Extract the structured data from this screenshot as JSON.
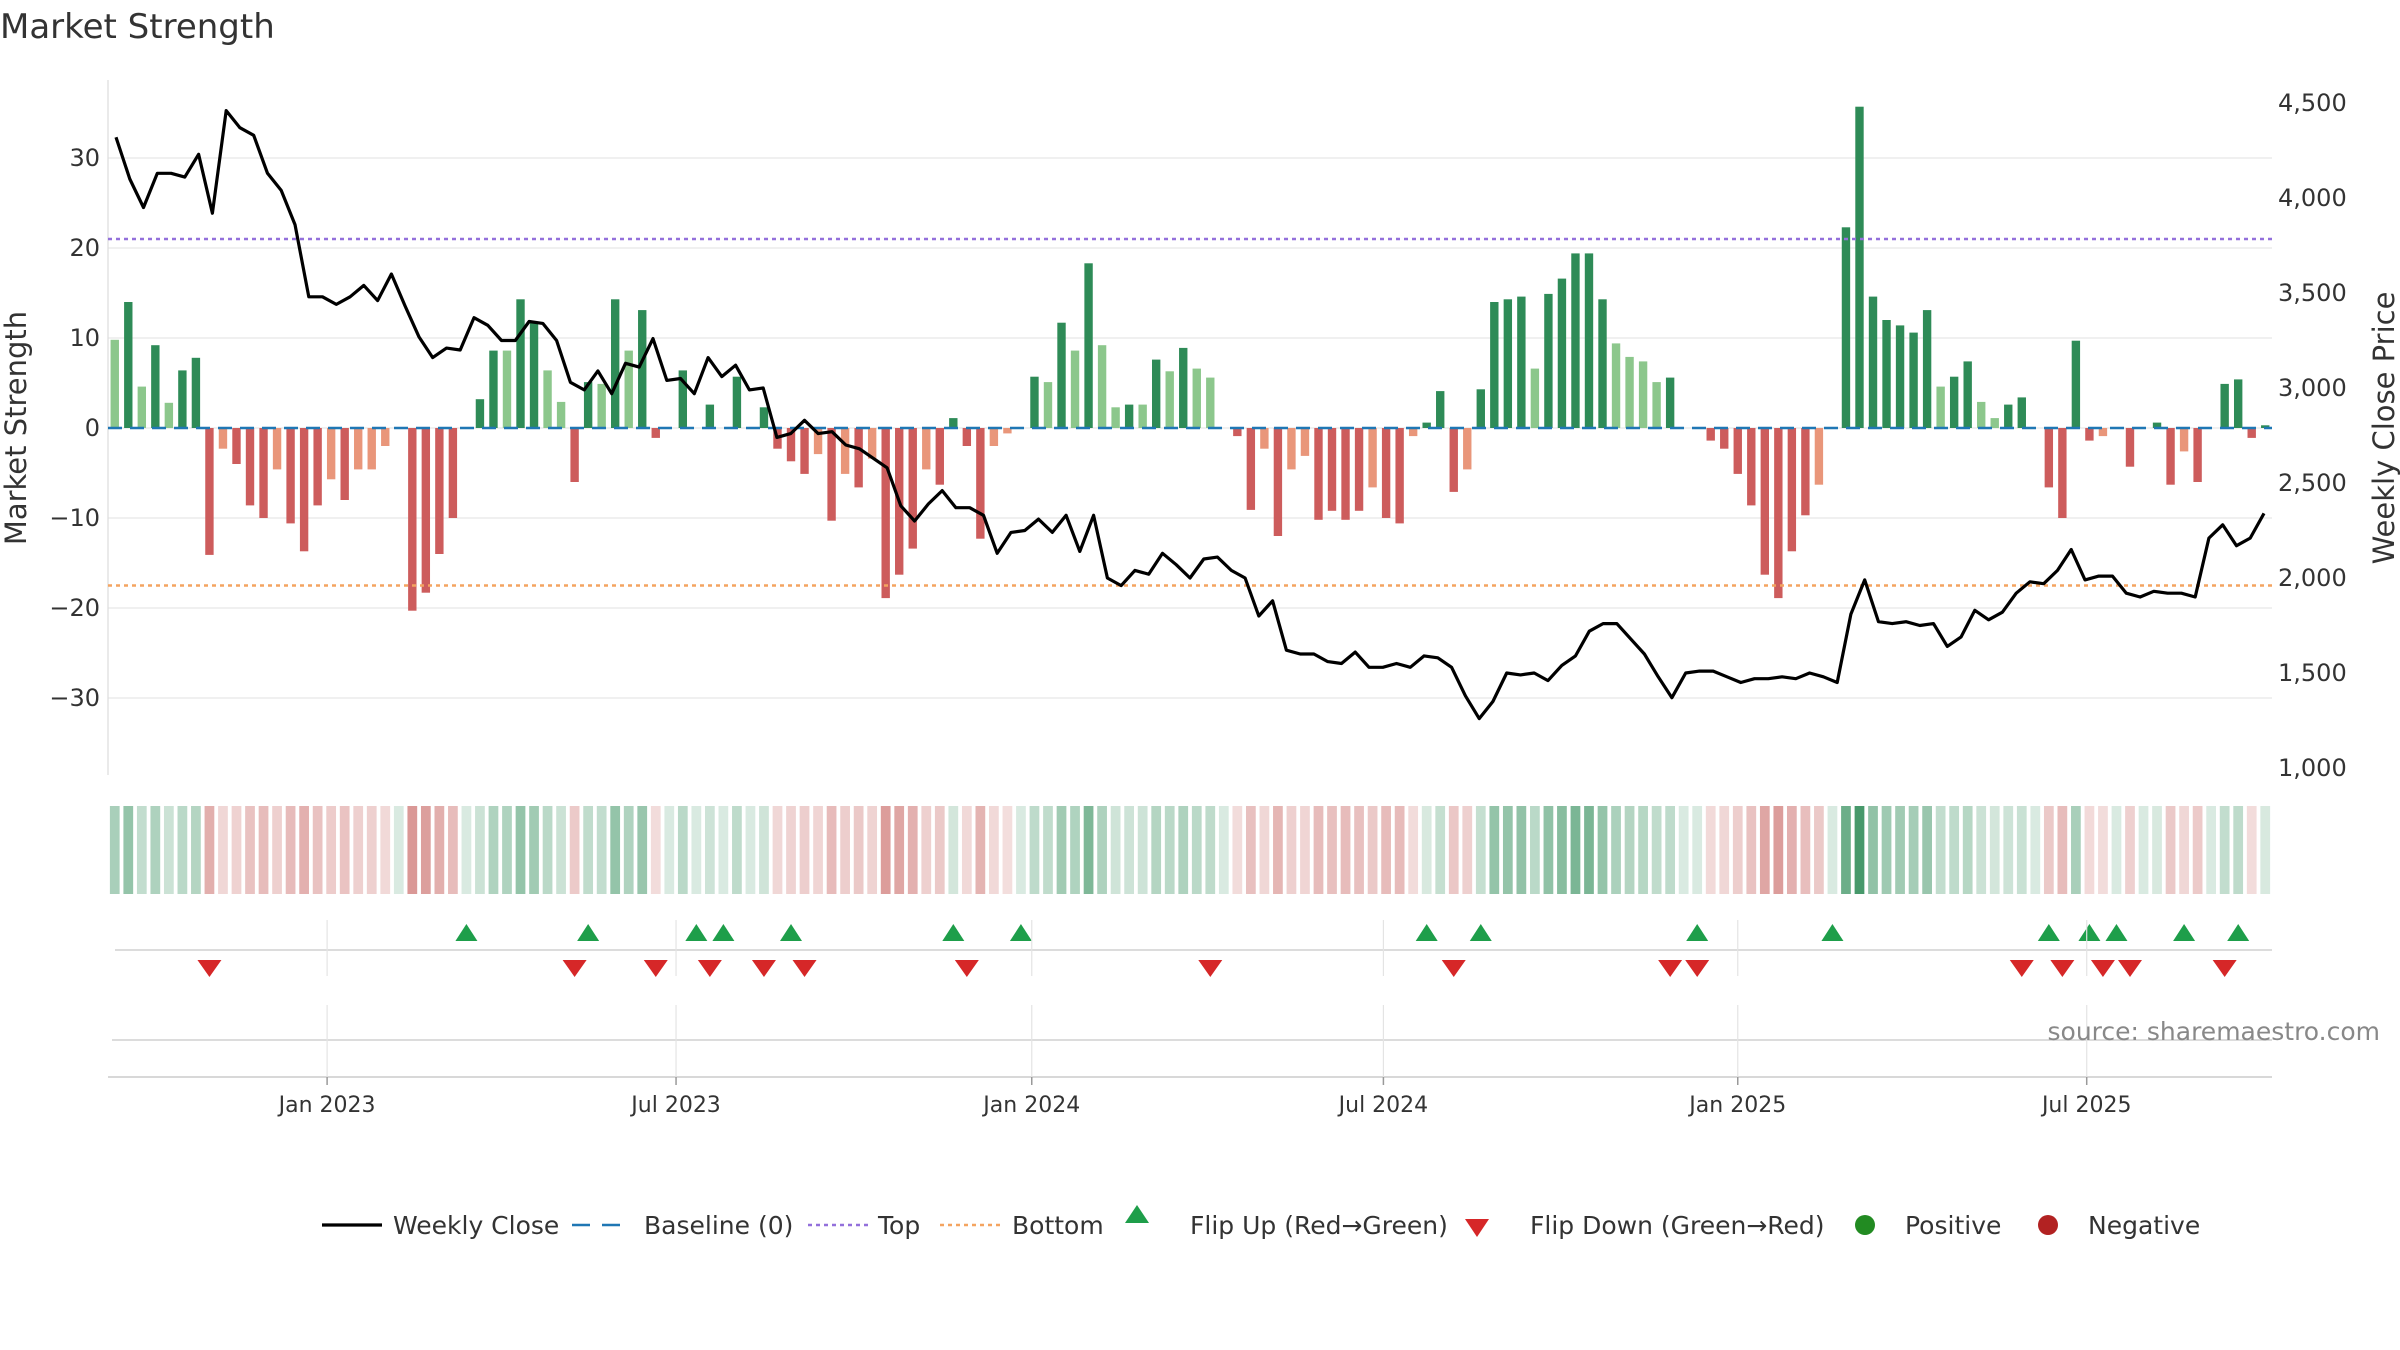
{
  "title": "Market Strength",
  "source": "source: sharemaestro.com",
  "colors": {
    "posStrong": "#2e8b57",
    "posWeak": "#8cc78c",
    "negStrong": "#cd5c5c",
    "negWeak": "#e9967a",
    "top": "#9370db",
    "bottom": "#f4a460",
    "baseline": "#1f77b4",
    "line": "#000000",
    "flipUp": "#1e9e4a",
    "flipDown": "#d62728",
    "positive": "#228b22",
    "negative": "#b22222"
  },
  "legend": [
    {
      "key": "weekly_close",
      "label": "Weekly Close",
      "symbol": "line"
    },
    {
      "key": "baseline",
      "label": "Baseline (0)",
      "symbol": "dash"
    },
    {
      "key": "top",
      "label": "Top",
      "symbol": "dot-purple"
    },
    {
      "key": "bottom",
      "label": "Bottom",
      "symbol": "dot-orange"
    },
    {
      "key": "flip_up",
      "label": "Flip Up (Red→Green)",
      "symbol": "tri-up"
    },
    {
      "key": "flip_down",
      "label": "Flip Down (Green→Red)",
      "symbol": "tri-down"
    },
    {
      "key": "positive",
      "label": "Positive",
      "symbol": "circle-green"
    },
    {
      "key": "negative",
      "label": "Negative",
      "symbol": "circle-red"
    }
  ],
  "chart_data": {
    "type": "bar",
    "title": "Market Strength",
    "ylabel": "Market Strength",
    "y2label": "Weekly Close Price",
    "ylim": [
      -38,
      38
    ],
    "y2lim": [
      850,
      4600
    ],
    "yticks": [
      -30,
      -20,
      -10,
      0,
      10,
      20,
      30
    ],
    "ytick_labels": [
      "−30",
      "−20",
      "−10",
      "0",
      "10",
      "20",
      "30"
    ],
    "y2ticks": [
      1000,
      1500,
      2000,
      2500,
      3000,
      3500,
      4000,
      4500
    ],
    "y2tick_labels": [
      "1,000",
      "1,500",
      "2,000",
      "2,500",
      "3,000",
      "3,500",
      "4,000",
      "4,500"
    ],
    "xtick_labels": [
      "Jan 2023",
      "Jul 2023",
      "Jan 2024",
      "Jul 2024",
      "Jan 2025",
      "Jul 2025"
    ],
    "xtick_index": [
      16.2,
      42,
      68.3,
      94.3,
      120.5,
      146.3
    ],
    "top_level": 21,
    "bottom_level": -17.5,
    "baseline": 0,
    "strength": [
      9.8,
      14,
      4.6,
      9.2,
      2.8,
      6.4,
      7.8,
      -14.1,
      -2.3,
      -4,
      -8.6,
      -10,
      -4.6,
      -10.6,
      -13.7,
      -8.6,
      -5.7,
      -8,
      -4.6,
      -4.6,
      -2,
      0,
      -20.3,
      -18.3,
      -14,
      -10,
      0,
      3.2,
      8.6,
      8.6,
      14.3,
      11.7,
      6.4,
      2.9,
      -6,
      5.1,
      4.9,
      14.3,
      8.6,
      13.1,
      -1.1,
      0,
      6.4,
      0,
      2.6,
      0,
      5.7,
      0,
      2.3,
      -2.3,
      -3.7,
      -5.1,
      -2.9,
      -10.3,
      -5.1,
      -6.6,
      -3.4,
      -18.9,
      -16.3,
      -13.4,
      -4.6,
      -6.3,
      1.1,
      -2,
      -12.3,
      -2,
      -0.6,
      0,
      5.7,
      5.1,
      11.7,
      8.6,
      18.3,
      9.2,
      2.3,
      2.6,
      2.6,
      7.6,
      6.3,
      8.9,
      6.6,
      5.6,
      0,
      -0.9,
      -9.1,
      -2.3,
      -12,
      -4.6,
      -3.1,
      -10.2,
      -9.2,
      -10.2,
      -9.2,
      -6.6,
      -10,
      -10.6,
      -0.9,
      0.6,
      4.1,
      -7.1,
      -4.6,
      4.3,
      14,
      14.3,
      14.6,
      6.6,
      14.9,
      16.6,
      19.4,
      19.4,
      14.3,
      9.4,
      7.9,
      7.4,
      5.1,
      5.6,
      0,
      0,
      -1.4,
      -2.3,
      -5.1,
      -8.6,
      -16.3,
      -18.9,
      -13.7,
      -9.7,
      -6.3,
      0,
      22.3,
      35.7,
      14.6,
      12,
      11.4,
      10.6,
      13.1,
      4.6,
      5.7,
      7.4,
      2.9,
      1.1,
      2.6,
      3.4,
      0,
      -6.6,
      -10,
      9.7,
      -1.4,
      -0.9,
      0,
      -4.3,
      0,
      0.6,
      -6.3,
      -2.6,
      -6,
      0,
      4.9,
      5.4,
      -1.1,
      0.3
    ],
    "weekly_close": [
      4320,
      4100,
      3950,
      4130,
      4130,
      4110,
      4230,
      3920,
      4460,
      4370,
      4330,
      4130,
      4040,
      3860,
      3480,
      3480,
      3440,
      3480,
      3540,
      3460,
      3600,
      3430,
      3270,
      3160,
      3210,
      3200,
      3370,
      3330,
      3250,
      3250,
      3350,
      3340,
      3250,
      3030,
      2990,
      3090,
      2970,
      3130,
      3110,
      3260,
      3040,
      3050,
      2970,
      3160,
      3060,
      3120,
      2990,
      3000,
      2740,
      2760,
      2830,
      2760,
      2770,
      2700,
      2680,
      2630,
      2580,
      2380,
      2300,
      2390,
      2460,
      2370,
      2370,
      2330,
      2130,
      2240,
      2250,
      2310,
      2240,
      2330,
      2140,
      2330,
      2000,
      1960,
      2040,
      2020,
      2130,
      2070,
      2000,
      2100,
      2110,
      2040,
      2000,
      1800,
      1880,
      1620,
      1600,
      1600,
      1560,
      1550,
      1610,
      1530,
      1530,
      1550,
      1530,
      1590,
      1580,
      1530,
      1380,
      1260,
      1350,
      1500,
      1490,
      1500,
      1460,
      1540,
      1590,
      1720,
      1760,
      1760,
      1680,
      1600,
      1480,
      1370,
      1500,
      1510,
      1510,
      1480,
      1450,
      1470,
      1470,
      1480,
      1470,
      1500,
      1480,
      1450,
      1810,
      1990,
      1770,
      1760,
      1770,
      1750,
      1760,
      1640,
      1690,
      1830,
      1780,
      1820,
      1920,
      1980,
      1970,
      2040,
      2150,
      1990,
      2010,
      2010,
      1920,
      1900,
      1930,
      1920,
      1920,
      1900,
      2210,
      2280,
      2170,
      2210,
      2340
    ],
    "flip_up_index": [
      26,
      35,
      43,
      45,
      50,
      62,
      67,
      97,
      101,
      117,
      127,
      143,
      146,
      148,
      153,
      157
    ],
    "flip_down_index": [
      7,
      34,
      40,
      44,
      48,
      51,
      63,
      81,
      99,
      115,
      117,
      141,
      144,
      147,
      149,
      156
    ]
  }
}
